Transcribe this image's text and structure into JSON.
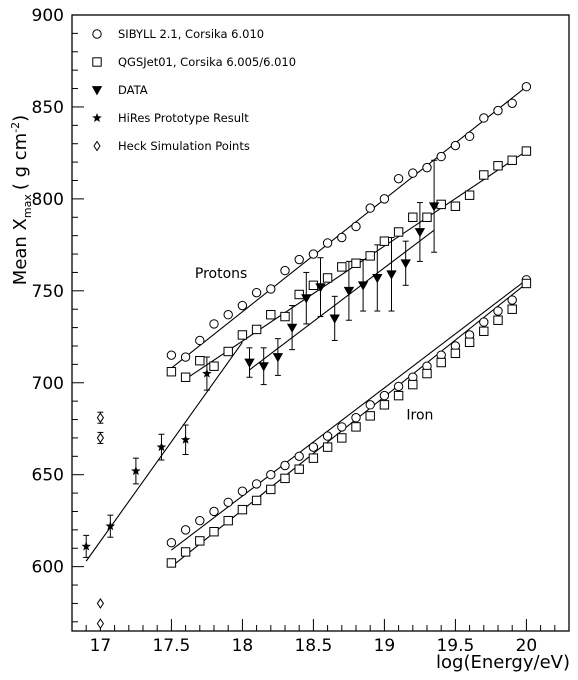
{
  "chart_data": {
    "type": "scatter",
    "xlabel": "log(Energy/eV)",
    "ylabel": "Mean X",
    "ylabel_sub": "max",
    "ylabel_units": "( g cm",
    "ylabel_sup": "-2",
    "ylabel_close": ")",
    "xlim": [
      16.8,
      20.3
    ],
    "ylim": [
      565,
      900
    ],
    "x_ticks": [
      "17",
      "17.5",
      "18",
      "18.5",
      "19",
      "19.5",
      "20"
    ],
    "y_ticks": [
      "600",
      "650",
      "700",
      "750",
      "800",
      "850",
      "900"
    ],
    "grid": false,
    "legend_position": "top-left",
    "annotations": [
      {
        "text": "Protons",
        "x": 17.85,
        "y": 757
      },
      {
        "text": "Iron",
        "x": 19.25,
        "y": 680
      }
    ],
    "series": [
      {
        "name": "SIBYLL 2.1, Corsika 6.010",
        "marker": "circle",
        "x": [
          17.5,
          17.6,
          17.7,
          17.8,
          17.9,
          18.0,
          18.1,
          18.2,
          18.3,
          18.4,
          18.5,
          18.6,
          18.7,
          18.8,
          18.9,
          19.0,
          19.1,
          19.2,
          19.3,
          19.4,
          19.5,
          19.6,
          19.7,
          19.8,
          19.9,
          20.0
        ],
        "y": [
          715,
          714,
          723,
          732,
          737,
          742,
          749,
          751,
          761,
          767,
          770,
          776,
          779,
          785,
          795,
          800,
          811,
          814,
          817,
          823,
          829,
          834,
          844,
          848,
          852,
          861
        ],
        "fit": {
          "x": [
            17.5,
            20.0
          ],
          "y": [
            708,
            861
          ]
        }
      },
      {
        "name": "QGSJet01, Corsika 6.005/6.010",
        "marker": "square",
        "x": [
          17.5,
          17.6,
          17.7,
          17.8,
          17.9,
          18.0,
          18.1,
          18.2,
          18.3,
          18.4,
          18.5,
          18.6,
          18.7,
          18.8,
          18.9,
          19.0,
          19.1,
          19.2,
          19.3,
          19.4,
          19.5,
          19.6,
          19.7,
          19.8,
          19.9,
          20.0
        ],
        "y": [
          706,
          703,
          712,
          709,
          717,
          726,
          729,
          737,
          736,
          748,
          753,
          757,
          763,
          765,
          769,
          777,
          782,
          790,
          790,
          797,
          796,
          802,
          813,
          818,
          821,
          826
        ],
        "fit": {
          "x": [
            17.6,
            20.0
          ],
          "y": [
            702,
            826
          ]
        }
      },
      {
        "name": "DATA",
        "marker": "triangle-down",
        "x": [
          18.05,
          18.15,
          18.25,
          18.35,
          18.45,
          18.55,
          18.65,
          18.75,
          18.85,
          18.95,
          19.05,
          19.15,
          19.25,
          19.35
        ],
        "y": [
          711,
          709,
          714,
          730,
          746,
          752,
          735,
          750,
          753,
          757,
          759,
          765,
          782,
          796
        ],
        "yerr": [
          8,
          10,
          10,
          12,
          14,
          16,
          12,
          16,
          14,
          18,
          20,
          12,
          16,
          25
        ],
        "fit": {
          "x": [
            18.05,
            19.35
          ],
          "y": [
            707,
            783
          ]
        }
      },
      {
        "name": "HiRes Prototype Result",
        "marker": "star",
        "x": [
          16.9,
          17.07,
          17.25,
          17.43,
          17.6,
          17.75
        ],
        "y": [
          611,
          622,
          652,
          665,
          669,
          705
        ],
        "yerr": [
          6,
          6,
          7,
          7,
          8,
          9
        ],
        "fit": {
          "x": [
            16.9,
            18.0
          ],
          "y": [
            603,
            722
          ]
        }
      },
      {
        "name": "Heck Simulation Points",
        "marker": "diamond",
        "x": [
          17.0,
          17.0,
          17.0,
          17.0
        ],
        "y": [
          681,
          670,
          580,
          569
        ],
        "yerr": [
          3,
          3,
          0,
          0
        ]
      },
      {
        "name": "",
        "marker": "circle",
        "x": [
          17.5,
          17.6,
          17.7,
          17.8,
          17.9,
          18.0,
          18.1,
          18.2,
          18.3,
          18.4,
          18.5,
          18.6,
          18.7,
          18.8,
          18.9,
          19.0,
          19.1,
          19.2,
          19.3,
          19.4,
          19.5,
          19.6,
          19.7,
          19.8,
          19.9,
          20.0
        ],
        "y": [
          613,
          620,
          625,
          630,
          635,
          641,
          645,
          650,
          655,
          660,
          665,
          671,
          676,
          681,
          688,
          693,
          698,
          703,
          709,
          715,
          720,
          726,
          733,
          739,
          745,
          756
        ],
        "fit": {
          "x": [
            17.5,
            20.0
          ],
          "y": [
            609,
            756
          ]
        }
      },
      {
        "name": "",
        "marker": "square",
        "x": [
          17.5,
          17.6,
          17.7,
          17.8,
          17.9,
          18.0,
          18.1,
          18.2,
          18.3,
          18.4,
          18.5,
          18.6,
          18.7,
          18.8,
          18.9,
          19.0,
          19.1,
          19.2,
          19.3,
          19.4,
          19.5,
          19.6,
          19.7,
          19.8,
          19.9,
          20.0
        ],
        "y": [
          602,
          608,
          614,
          619,
          625,
          631,
          636,
          642,
          648,
          653,
          659,
          665,
          670,
          676,
          682,
          688,
          693,
          699,
          705,
          711,
          716,
          722,
          728,
          734,
          740,
          754
        ],
        "fit": {
          "x": [
            17.5,
            20.0
          ],
          "y": [
            600,
            754
          ]
        }
      }
    ],
    "legend": [
      {
        "marker": "circle",
        "label": "SIBYLL 2.1, Corsika 6.010"
      },
      {
        "marker": "square",
        "label": "QGSJet01, Corsika 6.005/6.010"
      },
      {
        "marker": "triangle-down",
        "label": "DATA"
      },
      {
        "marker": "star",
        "label": "HiRes Prototype Result"
      },
      {
        "marker": "diamond",
        "label": "Heck Simulation Points"
      }
    ]
  }
}
